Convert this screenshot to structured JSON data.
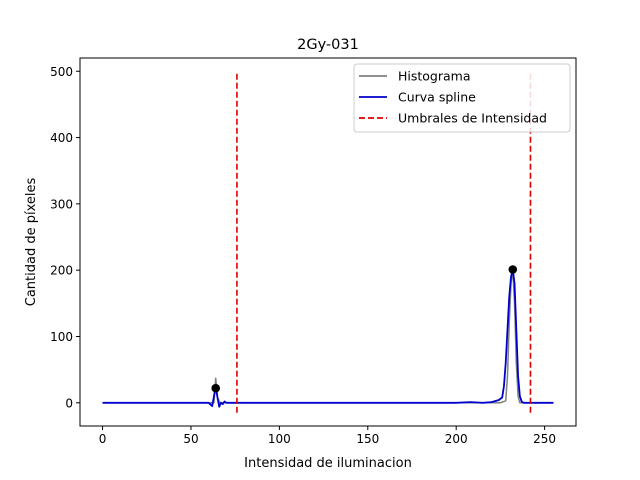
{
  "chart_data": {
    "type": "line",
    "title": "2Gy-031",
    "xlabel": "Intensidad de iluminacion",
    "ylabel": "Cantidad de píxeles",
    "xlim": [
      -12.75,
      267.75
    ],
    "ylim": [
      -35,
      520
    ],
    "xticks": [
      0,
      50,
      100,
      150,
      200,
      250
    ],
    "yticks": [
      0,
      100,
      200,
      300,
      400,
      500
    ],
    "legend_position": "top-right",
    "legend": [
      {
        "label": "Histograma",
        "color": "#808080",
        "style": "solid"
      },
      {
        "label": "Curva spline",
        "color": "#0000cc",
        "style": "solid"
      },
      {
        "label": "Umbrales de Intensidad",
        "color": "#dd0000",
        "style": "dashed"
      }
    ],
    "histogram": {
      "name": "Histograma",
      "color": "#808080",
      "points": [
        [
          0,
          0
        ],
        [
          62,
          0
        ],
        [
          63,
          0
        ],
        [
          64,
          37
        ],
        [
          65,
          8
        ],
        [
          66,
          2
        ],
        [
          67,
          0
        ],
        [
          225,
          0
        ],
        [
          228,
          3
        ],
        [
          229,
          40
        ],
        [
          230,
          120
        ],
        [
          231,
          180
        ],
        [
          232,
          200
        ],
        [
          233,
          150
        ],
        [
          234,
          60
        ],
        [
          235,
          10
        ],
        [
          236,
          0
        ],
        [
          255,
          0
        ]
      ]
    },
    "spline": {
      "name": "Curva spline",
      "color": "#0000cc",
      "points": [
        [
          0,
          0
        ],
        [
          55,
          0
        ],
        [
          60,
          0
        ],
        [
          62,
          -5
        ],
        [
          63,
          10
        ],
        [
          64,
          24
        ],
        [
          65,
          8
        ],
        [
          66,
          -6
        ],
        [
          67,
          0
        ],
        [
          68,
          -2
        ],
        [
          69,
          2
        ],
        [
          70,
          0
        ],
        [
          75,
          0
        ],
        [
          100,
          0
        ],
        [
          150,
          0
        ],
        [
          200,
          0
        ],
        [
          208,
          1
        ],
        [
          215,
          0
        ],
        [
          220,
          1
        ],
        [
          224,
          4
        ],
        [
          226,
          8
        ],
        [
          227,
          25
        ],
        [
          228,
          60
        ],
        [
          229,
          110
        ],
        [
          230,
          160
        ],
        [
          231,
          190
        ],
        [
          232,
          201
        ],
        [
          233,
          180
        ],
        [
          234,
          110
        ],
        [
          235,
          40
        ],
        [
          236,
          10
        ],
        [
          237,
          2
        ],
        [
          238,
          0
        ],
        [
          245,
          0
        ],
        [
          255,
          0
        ]
      ]
    },
    "thresholds": {
      "name": "Umbrales de Intensidad",
      "color": "#dd0000",
      "x": [
        76,
        242
      ],
      "y_range": [
        -15,
        500
      ]
    },
    "peaks": {
      "color": "#000000",
      "points": [
        [
          64,
          22
        ],
        [
          232,
          201
        ]
      ]
    }
  }
}
